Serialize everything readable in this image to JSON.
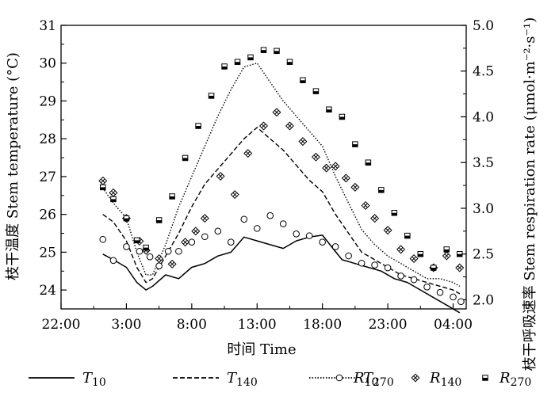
{
  "chart_data": {
    "type": "line",
    "title": "",
    "xlabel": "时间 Time",
    "ylabel_left": "枝干温度 Stem temperature (°C)",
    "ylabel_right": "枝干呼吸速率 Stem respiration rate (μmol·m⁻²·s⁻¹)",
    "x_tick_labels": [
      "22:00",
      "3:00",
      "8:00",
      "13:00",
      "18:00",
      "23:00",
      "04:00"
    ],
    "x_ticks_hours": [
      0,
      5,
      10,
      15,
      20,
      25,
      30
    ],
    "x_range_hours": [
      0,
      31
    ],
    "ylim_left": [
      23.5,
      31
    ],
    "ylim_right": [
      1.9,
      5.0
    ],
    "y_ticks_left": [
      24,
      25,
      26,
      27,
      28,
      29,
      30,
      31
    ],
    "y_ticks_right": [
      "2.0",
      "2.5",
      "3.0",
      "3.5",
      "4.0",
      "4.5",
      "5.0"
    ],
    "grid": false,
    "legend_position": "bottom",
    "series": [
      {
        "name": "T10",
        "name_main": "T",
        "name_sub": "10",
        "axis": "left",
        "style": "solid",
        "x": [
          3.2,
          4,
          5,
          5.8,
          6.5,
          7,
          8,
          9,
          10,
          11,
          12,
          13,
          14,
          15,
          16,
          17,
          18,
          19,
          20,
          20.8,
          21.5,
          22.5,
          23.5,
          24.5,
          25.5,
          26.5,
          27.5,
          28.5,
          29.5,
          30.5
        ],
        "y": [
          24.95,
          24.8,
          24.6,
          24.2,
          24.0,
          24.1,
          24.4,
          24.3,
          24.6,
          24.7,
          24.9,
          25.0,
          25.4,
          25.3,
          25.2,
          25.1,
          25.3,
          25.4,
          25.45,
          25.1,
          24.8,
          24.7,
          24.6,
          24.5,
          24.3,
          24.2,
          24.0,
          23.8,
          23.6,
          23.4
        ]
      },
      {
        "name": "T140",
        "name_main": "T",
        "name_sub": "140",
        "axis": "left",
        "style": "dashed",
        "x": [
          3.2,
          4,
          5,
          5.8,
          6.5,
          7,
          8,
          9,
          10,
          11,
          12,
          13,
          14,
          15,
          16,
          17,
          18,
          19,
          20,
          21,
          22,
          23,
          24,
          25,
          26,
          27,
          28,
          29,
          30,
          30.5
        ],
        "y": [
          26.0,
          25.8,
          25.3,
          24.6,
          24.2,
          24.3,
          24.9,
          25.5,
          26.2,
          26.8,
          27.2,
          27.6,
          28.0,
          28.3,
          28.0,
          27.7,
          27.3,
          26.9,
          26.6,
          26.0,
          25.5,
          25.0,
          24.8,
          24.6,
          24.4,
          24.3,
          24.2,
          24.1,
          24.0,
          23.9
        ]
      },
      {
        "name": "T270",
        "name_main": "T",
        "name_sub": "270",
        "axis": "left",
        "style": "dotted",
        "x": [
          3.2,
          4,
          5,
          5.8,
          6.5,
          7,
          8,
          9,
          10,
          11,
          12,
          13,
          14,
          15,
          16,
          17,
          18,
          19,
          20,
          21,
          22,
          23,
          24,
          25,
          26,
          27,
          28,
          29,
          30,
          30.5
        ],
        "y": [
          26.7,
          26.3,
          25.9,
          25.0,
          24.4,
          24.4,
          25.2,
          26.2,
          27.0,
          27.8,
          28.6,
          29.3,
          29.9,
          30.0,
          29.5,
          29.0,
          28.6,
          28.2,
          27.8,
          27.0,
          26.3,
          25.6,
          25.2,
          24.9,
          24.7,
          24.5,
          24.3,
          24.3,
          24.2,
          24.1
        ]
      },
      {
        "name": "R10",
        "name_main": "R",
        "name_sub": "10",
        "axis": "right",
        "marker": "open-circle",
        "x": [
          3.2,
          4,
          5,
          6,
          6.8,
          7.5,
          8.2,
          9,
          10,
          11,
          12,
          13,
          14,
          15,
          16,
          17,
          18,
          19,
          20,
          21,
          22,
          23,
          24,
          25,
          26,
          27,
          28,
          29,
          30,
          30.6
        ],
        "y": [
          2.66,
          2.43,
          2.58,
          2.53,
          2.47,
          2.37,
          2.53,
          2.53,
          2.63,
          2.69,
          2.75,
          2.63,
          2.88,
          2.78,
          2.92,
          2.83,
          2.72,
          2.7,
          2.63,
          2.58,
          2.48,
          2.4,
          2.38,
          2.35,
          2.26,
          2.22,
          2.14,
          2.08,
          2.03,
          1.98
        ]
      },
      {
        "name": "R140",
        "name_main": "R",
        "name_sub": "140",
        "axis": "right",
        "marker": "crossed-diamond",
        "x": [
          3.2,
          4,
          5,
          6,
          6.5,
          7.5,
          8.5,
          9.5,
          10.3,
          11,
          12.2,
          13.3,
          14.3,
          15.5,
          16.5,
          17.5,
          18.5,
          19.5,
          20.3,
          21,
          21.8,
          22.5,
          23.3,
          24,
          25,
          26,
          27,
          28.5,
          29.5,
          30.5
        ],
        "y": [
          3.3,
          3.17,
          2.89,
          2.64,
          2.54,
          2.45,
          2.39,
          2.63,
          2.75,
          2.89,
          3.35,
          3.15,
          3.6,
          3.9,
          4.05,
          3.9,
          3.73,
          3.56,
          3.44,
          3.46,
          3.33,
          3.23,
          3.03,
          2.89,
          2.76,
          2.55,
          2.45,
          2.35,
          2.48,
          2.35
        ]
      },
      {
        "name": "R270",
        "name_main": "R",
        "name_sub": "270",
        "axis": "right",
        "marker": "half-filled-square",
        "x": [
          3.2,
          4,
          5,
          5.8,
          6.5,
          7.5,
          8.5,
          9.5,
          10.5,
          11.5,
          12.5,
          13.5,
          14.5,
          15.5,
          16.5,
          17.5,
          18.5,
          19.5,
          20.5,
          21.5,
          22.5,
          23.5,
          24.5,
          25.5,
          26.5,
          27.5,
          28.5,
          29.5,
          30.5
        ],
        "y": [
          3.23,
          3.1,
          2.89,
          2.65,
          2.57,
          2.87,
          3.13,
          3.55,
          3.9,
          4.23,
          4.55,
          4.6,
          4.65,
          4.73,
          4.72,
          4.6,
          4.4,
          4.28,
          4.08,
          4.0,
          3.7,
          3.5,
          3.2,
          2.95,
          2.7,
          2.5,
          2.35,
          2.55,
          2.5
        ]
      }
    ]
  }
}
